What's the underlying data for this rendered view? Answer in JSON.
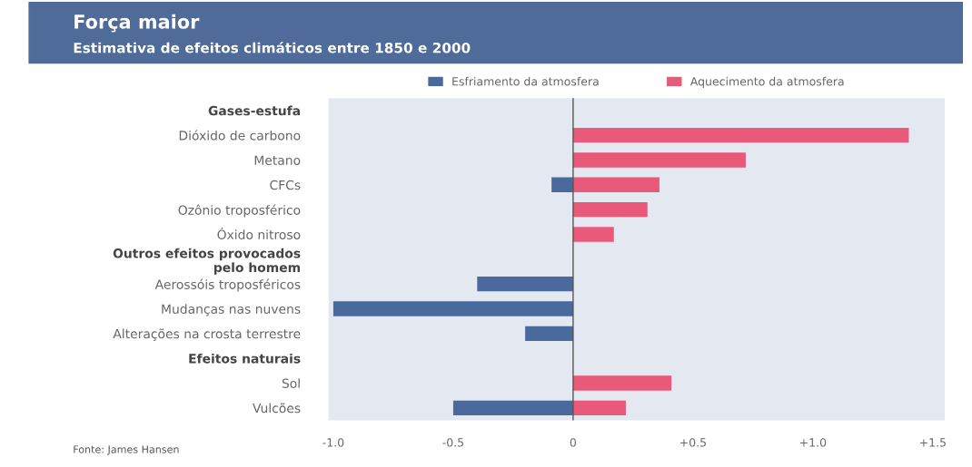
{
  "chart_data": {
    "type": "bar",
    "orientation": "horizontal",
    "title": "Força maior",
    "subtitle": "Estimativa de efeitos climáticos entre 1850 e 2000",
    "categories": [
      "Gases-estufa",
      "Dióxido de carbono",
      "Metano",
      "CFCs",
      "Ozônio troposférico",
      "Óxido nitroso",
      "Outros efeitos provocados\npelo homem",
      "Aerossóis troposféricos",
      "Mudanças nas nuvens",
      "Alterações na crosta terrestre",
      "Efeitos naturais",
      "Sol",
      "Vulcões"
    ],
    "series": [
      {
        "name": "Esfriamento da atmosfera",
        "color": "#4a6a9e",
        "values": [
          null,
          null,
          null,
          -0.09,
          null,
          null,
          null,
          -0.4,
          -1.0,
          -0.2,
          null,
          null,
          -0.5
        ]
      },
      {
        "name": "Aquecimento da atmosfera",
        "color": "#e8597a",
        "values": [
          null,
          1.4,
          0.72,
          0.36,
          0.31,
          0.17,
          null,
          null,
          null,
          null,
          null,
          0.41,
          0.22
        ]
      }
    ],
    "xlim": [
      -1.02,
      1.55
    ],
    "xticks": [
      {
        "value": -1.0,
        "label": "-1.0"
      },
      {
        "value": -0.5,
        "label": "-0.5"
      },
      0,
      {
        "value": 0.5,
        "label": "+0.5"
      },
      {
        "value": 1.0,
        "label": "+1.0"
      },
      {
        "value": 1.5,
        "label": "+1.5"
      }
    ],
    "ref_lines": [
      {
        "axis": "x",
        "value": 0,
        "color": "#555555"
      }
    ],
    "grid": false,
    "legend": "top",
    "annotations": [
      "Fonte: James Hansen"
    ]
  }
}
